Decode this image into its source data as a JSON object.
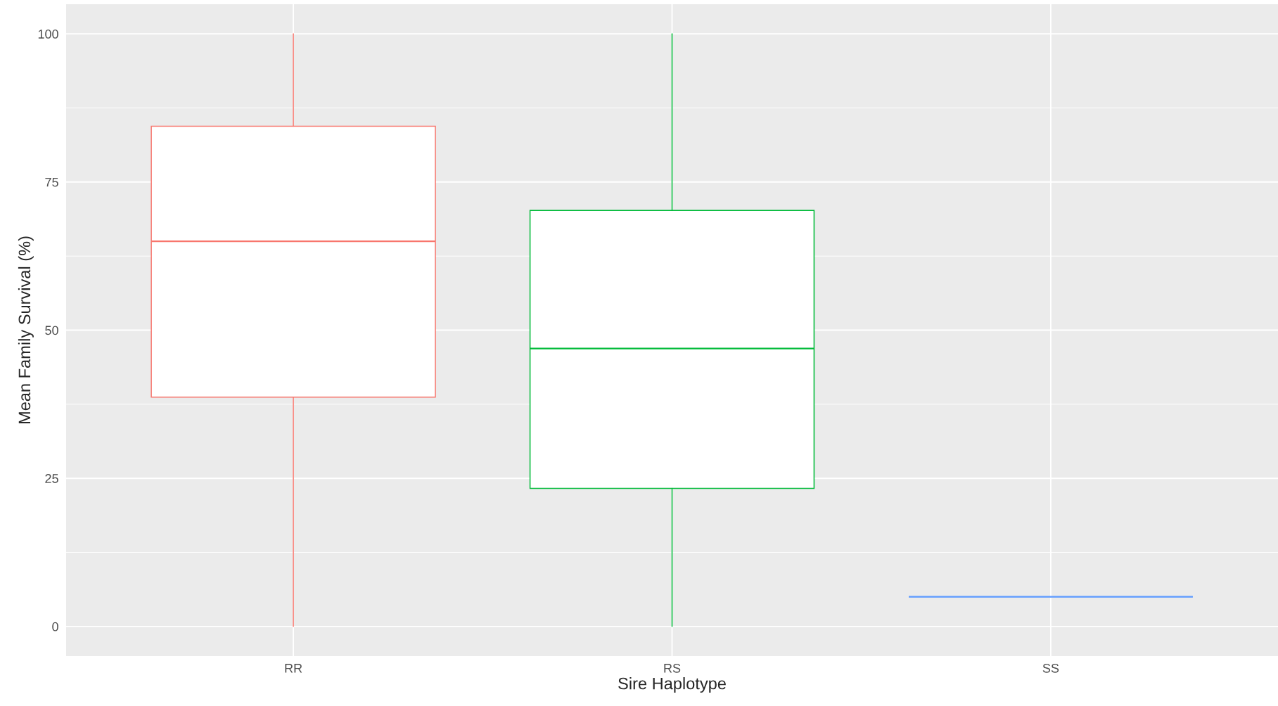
{
  "chart_data": {
    "type": "box",
    "xlabel": "Sire Haplotype",
    "ylabel": "Mean Family Survival (%)",
    "categories": [
      "RR",
      "RS",
      "SS"
    ],
    "boxes": [
      {
        "low": 0,
        "q1": 38.7,
        "median": 65,
        "q3": 84.4,
        "high": 100
      },
      {
        "low": 0,
        "q1": 23.3,
        "median": 46.9,
        "q3": 70.2,
        "high": 100
      },
      {
        "low": 5,
        "q1": 5,
        "median": 5,
        "q3": 5,
        "high": 5
      }
    ],
    "colors": [
      "#f8766d",
      "#00ba38",
      "#619cff"
    ],
    "ylim": [
      -5,
      105
    ],
    "yticks": [
      0,
      25,
      50,
      75,
      100
    ],
    "grid": true
  }
}
